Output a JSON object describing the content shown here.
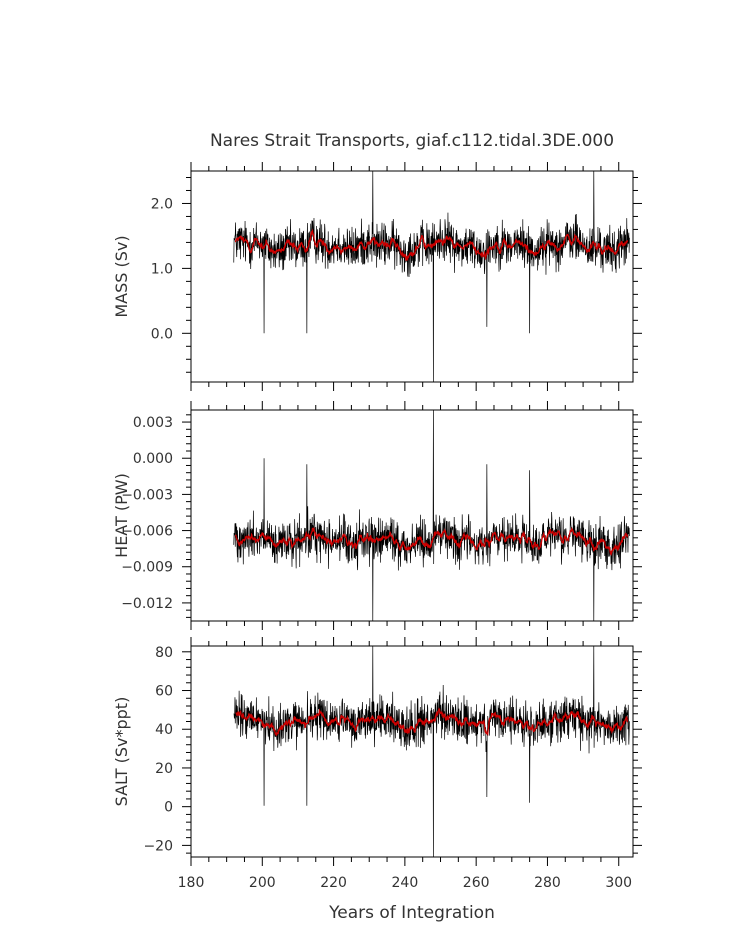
{
  "title": "Nares Strait Transports, giaf.c112.tidal.3DE.000",
  "xlabel": "Years of Integration",
  "colors": {
    "raw": "#000000",
    "smoothed": "#cc0000",
    "axis": "#000000",
    "text": "#333333"
  },
  "chart_data": [
    {
      "type": "line",
      "ylabel": "MASS (Sv)",
      "xlim": [
        180,
        304
      ],
      "ylim": [
        -0.75,
        2.5
      ],
      "yticks": [
        0.0,
        1.0,
        2.0
      ],
      "ytick_labels": [
        "0.0",
        "1.0",
        "2.0"
      ],
      "xticks": [
        180,
        200,
        220,
        240,
        260,
        280,
        300
      ],
      "xtick_labels": [],
      "mean": 1.35,
      "noise": 0.22,
      "spikes": [
        [
          231,
          2.5
        ],
        [
          248,
          -0.75
        ],
        [
          293,
          2.5
        ],
        [
          200.5,
          0.0
        ],
        [
          212.5,
          0.0
        ],
        [
          263,
          0.1
        ],
        [
          275,
          0.0
        ]
      ],
      "series": [
        {
          "x_start": 192,
          "x_end": 303,
          "interval": "monthly"
        }
      ]
    },
    {
      "type": "line",
      "ylabel": "HEAT (PW)",
      "xlim": [
        180,
        304
      ],
      "ylim": [
        -0.0135,
        0.004
      ],
      "yticks": [
        -0.012,
        -0.009,
        -0.006,
        -0.003,
        0.0,
        0.003
      ],
      "ytick_labels": [
        "−0.012",
        "−0.009",
        "−0.006",
        "−0.003",
        "0.000",
        "0.003"
      ],
      "xticks": [
        180,
        200,
        220,
        240,
        260,
        280,
        300
      ],
      "xtick_labels": [],
      "mean": -0.0068,
      "noise": 0.0012,
      "spikes": [
        [
          248,
          0.004
        ],
        [
          231,
          -0.0135
        ],
        [
          293,
          -0.0135
        ],
        [
          200.5,
          0.0
        ],
        [
          212.5,
          -0.0005
        ],
        [
          263,
          -0.0005
        ],
        [
          275,
          -0.001
        ]
      ],
      "series": [
        {
          "x_start": 192,
          "x_end": 303,
          "interval": "monthly"
        }
      ]
    },
    {
      "type": "line",
      "ylabel": "SALT (Sv*ppt)",
      "xlim": [
        180,
        304
      ],
      "ylim": [
        -26,
        83
      ],
      "yticks": [
        -20,
        0,
        20,
        40,
        60,
        80
      ],
      "ytick_labels": [
        "−20",
        "0",
        "20",
        "40",
        "60",
        "80"
      ],
      "xticks": [
        180,
        200,
        220,
        240,
        260,
        280,
        300
      ],
      "xtick_labels": [
        "180",
        "200",
        "220",
        "240",
        "260",
        "280",
        "300"
      ],
      "mean": 44,
      "noise": 7.5,
      "spikes": [
        [
          231,
          83
        ],
        [
          248,
          -26
        ],
        [
          293,
          83
        ],
        [
          200.5,
          0.5
        ],
        [
          212.5,
          0.5
        ],
        [
          263,
          5
        ],
        [
          275,
          2
        ]
      ],
      "series": [
        {
          "x_start": 192,
          "x_end": 303,
          "interval": "monthly"
        }
      ]
    }
  ]
}
